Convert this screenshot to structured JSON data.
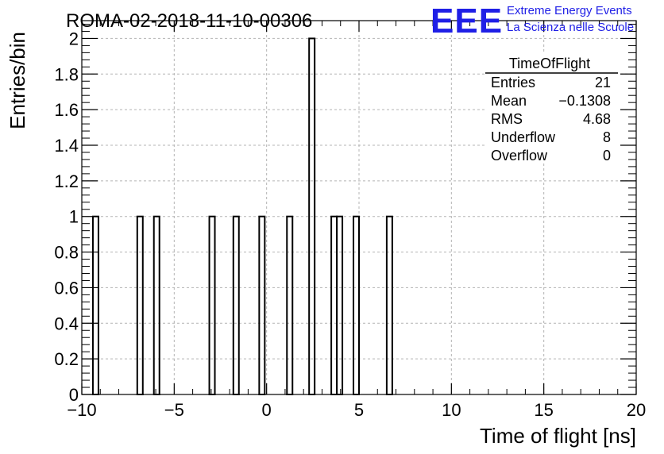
{
  "header": {
    "run_title": "ROMA-02-2018-11-10-00306",
    "logo_text": "EEE",
    "logo_line1": "Extreme Energy Events",
    "logo_line2": "La Scienza nelle Scuole"
  },
  "colors": {
    "logo_blue": "#1f1fe6",
    "histogram_line": "#000000",
    "grid": "#b4b4b4"
  },
  "stats_box": {
    "title": "TimeOfFlight",
    "rows": [
      {
        "label": "Entries",
        "value": "21"
      },
      {
        "label": "Mean",
        "value": "−0.1308"
      },
      {
        "label": "RMS",
        "value": "4.68"
      },
      {
        "label": "Underflow",
        "value": "8"
      },
      {
        "label": "Overflow",
        "value": "0"
      }
    ]
  },
  "chart_data": {
    "type": "bar",
    "xlabel": "Time of flight [ns]",
    "ylabel": "Entries/bin",
    "xlim": [
      -10,
      20
    ],
    "ylim": [
      0,
      2.1
    ],
    "grid": true,
    "bin_width": 0.3,
    "x_ticks": [
      "−10",
      "−5",
      "0",
      "5",
      "10",
      "15",
      "20"
    ],
    "y_ticks": [
      "0",
      "0.2",
      "0.4",
      "0.6",
      "0.8",
      "1",
      "1.2",
      "1.4",
      "1.6",
      "1.8",
      "2"
    ],
    "bins": [
      {
        "x": -9.4,
        "count": 1
      },
      {
        "x": -7.0,
        "count": 1
      },
      {
        "x": -6.1,
        "count": 1
      },
      {
        "x": -3.1,
        "count": 1
      },
      {
        "x": -1.8,
        "count": 1
      },
      {
        "x": -0.4,
        "count": 1
      },
      {
        "x": 1.1,
        "count": 1
      },
      {
        "x": 2.3,
        "count": 2
      },
      {
        "x": 3.5,
        "count": 1
      },
      {
        "x": 3.8,
        "count": 1
      },
      {
        "x": 4.7,
        "count": 1
      },
      {
        "x": 6.5,
        "count": 1
      }
    ]
  }
}
